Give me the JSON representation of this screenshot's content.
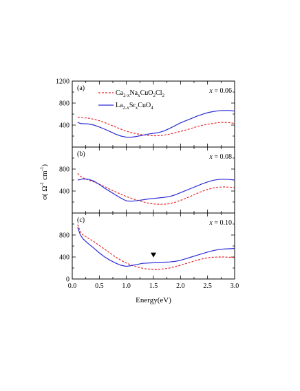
{
  "chart_data": [
    {
      "type": "line",
      "panel_label": "(a)",
      "annotation": "x = 0.06",
      "ylim": [
        0,
        1200
      ],
      "xlim": [
        0,
        3
      ],
      "series": [
        {
          "name": "Ca2-xNaxCuO2Cl2",
          "color": "#e8262a",
          "dash": "dashed",
          "x": [
            0.1,
            0.2,
            0.3,
            0.4,
            0.5,
            0.6,
            0.7,
            0.8,
            0.9,
            1.0,
            1.1,
            1.2,
            1.3,
            1.4,
            1.5,
            1.6,
            1.7,
            1.8,
            1.9,
            2.0,
            2.1,
            2.2,
            2.3,
            2.4,
            2.5,
            2.6,
            2.7,
            2.8,
            2.9,
            3.0
          ],
          "y": [
            545,
            535,
            525,
            505,
            480,
            445,
            405,
            365,
            325,
            290,
            260,
            240,
            222,
            212,
            205,
            207,
            217,
            235,
            260,
            285,
            310,
            340,
            370,
            395,
            415,
            430,
            445,
            450,
            445,
            430
          ]
        },
        {
          "name": "La2-xSrxCuO4",
          "color": "#2b2bd6",
          "dash": "solid",
          "x": [
            0.1,
            0.15,
            0.2,
            0.3,
            0.4,
            0.5,
            0.6,
            0.7,
            0.8,
            0.9,
            1.0,
            1.1,
            1.2,
            1.3,
            1.4,
            1.5,
            1.6,
            1.7,
            1.8,
            1.9,
            2.0,
            2.1,
            2.2,
            2.3,
            2.4,
            2.5,
            2.6,
            2.7,
            2.8,
            2.9,
            3.0
          ],
          "y": [
            450,
            430,
            425,
            420,
            400,
            365,
            325,
            280,
            235,
            200,
            180,
            180,
            195,
            215,
            235,
            250,
            265,
            295,
            340,
            390,
            440,
            480,
            520,
            560,
            595,
            625,
            645,
            660,
            665,
            665,
            655
          ]
        }
      ]
    },
    {
      "type": "line",
      "panel_label": "(b)",
      "annotation": "x = 0.08",
      "ylim": [
        0,
        1200
      ],
      "xlim": [
        0,
        3
      ],
      "series": [
        {
          "name": "Ca2-xNaxCuO2Cl2",
          "color": "#e8262a",
          "dash": "dashed",
          "x": [
            0.1,
            0.15,
            0.2,
            0.3,
            0.4,
            0.5,
            0.6,
            0.7,
            0.8,
            0.9,
            1.0,
            1.1,
            1.2,
            1.3,
            1.4,
            1.5,
            1.6,
            1.7,
            1.8,
            1.9,
            2.0,
            2.1,
            2.2,
            2.3,
            2.4,
            2.5,
            2.6,
            2.7,
            2.8,
            2.9,
            3.0
          ],
          "y": [
            720,
            670,
            640,
            600,
            565,
            525,
            480,
            430,
            385,
            340,
            300,
            265,
            235,
            205,
            180,
            165,
            160,
            160,
            170,
            195,
            230,
            270,
            310,
            355,
            395,
            430,
            455,
            470,
            475,
            470,
            465
          ]
        },
        {
          "name": "La2-xSrxCuO4",
          "color": "#2b2bd6",
          "dash": "solid",
          "x": [
            0.1,
            0.15,
            0.2,
            0.3,
            0.4,
            0.5,
            0.6,
            0.7,
            0.8,
            0.9,
            1.0,
            1.1,
            1.2,
            1.3,
            1.4,
            1.5,
            1.6,
            1.7,
            1.8,
            1.9,
            2.0,
            2.1,
            2.2,
            2.3,
            2.4,
            2.5,
            2.6,
            2.7,
            2.8,
            2.9,
            3.0
          ],
          "y": [
            600,
            610,
            620,
            615,
            580,
            520,
            450,
            390,
            330,
            270,
            220,
            215,
            225,
            240,
            255,
            265,
            275,
            285,
            300,
            330,
            370,
            410,
            450,
            490,
            530,
            565,
            595,
            610,
            615,
            610,
            600
          ]
        }
      ]
    },
    {
      "type": "line",
      "panel_label": "(c)",
      "annotation": "x = 0.10",
      "ylim": [
        0,
        1200
      ],
      "xlim": [
        0,
        3
      ],
      "xlabel": "Energy(eV)",
      "xticks": [
        "0.0",
        "0.5",
        "1.0",
        "1.5",
        "2.0",
        "2.5",
        "3.0"
      ],
      "marker": {
        "symbol": "down-triangle",
        "x": 1.5,
        "y": 430
      },
      "series": [
        {
          "name": "Ca2-xNaxCuO2Cl2",
          "color": "#e8262a",
          "dash": "dashed",
          "x": [
            0.1,
            0.15,
            0.2,
            0.3,
            0.4,
            0.5,
            0.6,
            0.7,
            0.8,
            0.9,
            1.0,
            1.1,
            1.2,
            1.3,
            1.4,
            1.5,
            1.6,
            1.7,
            1.8,
            1.9,
            2.0,
            2.1,
            2.2,
            2.3,
            2.4,
            2.5,
            2.6,
            2.7,
            2.8,
            2.9,
            3.0
          ],
          "y": [
            990,
            860,
            800,
            740,
            680,
            610,
            540,
            470,
            400,
            340,
            290,
            250,
            220,
            195,
            180,
            170,
            175,
            185,
            200,
            225,
            250,
            280,
            310,
            340,
            365,
            385,
            395,
            400,
            400,
            395,
            390
          ]
        },
        {
          "name": "La2-xSrxCuO4",
          "color": "#2b2bd6",
          "dash": "solid",
          "x": [
            0.1,
            0.15,
            0.2,
            0.3,
            0.4,
            0.5,
            0.6,
            0.7,
            0.8,
            0.9,
            1.0,
            1.1,
            1.2,
            1.3,
            1.4,
            1.5,
            1.6,
            1.7,
            1.8,
            1.9,
            2.0,
            2.1,
            2.2,
            2.3,
            2.4,
            2.5,
            2.6,
            2.7,
            2.8,
            2.9,
            3.0
          ],
          "y": [
            940,
            800,
            730,
            640,
            560,
            475,
            400,
            340,
            290,
            250,
            230,
            245,
            265,
            285,
            290,
            295,
            300,
            305,
            310,
            320,
            340,
            370,
            400,
            430,
            460,
            490,
            515,
            535,
            545,
            550,
            555
          ]
        }
      ]
    }
  ],
  "shared": {
    "ylabel_main": "σ( Ω",
    "ylabel_sup1": "-1",
    "ylabel_mid": "cm",
    "ylabel_sup2": "-1",
    "ylabel_end": ")",
    "yticks": [
      "0",
      "400",
      "800",
      "1200"
    ],
    "legend": [
      {
        "base": "Ca",
        "sub1": "2-x",
        "mid": "Na",
        "sub2": "x",
        "tail": "CuO",
        "sub3": "2",
        "tail2": "Cl",
        "sub4": "2"
      },
      {
        "base": "La",
        "sub1": "2-x",
        "mid": "Sr",
        "sub2": "x",
        "tail": "CuO",
        "sub3": "4",
        "tail2": "",
        "sub4": ""
      }
    ]
  }
}
